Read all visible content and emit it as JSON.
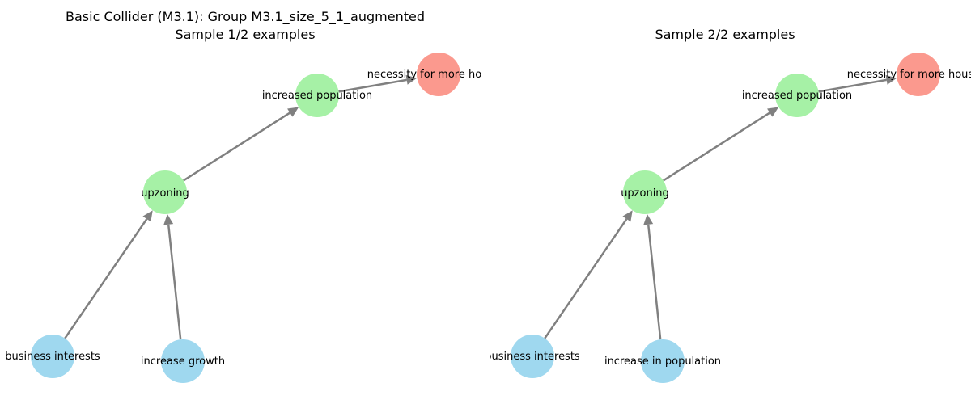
{
  "colors": {
    "blue": "#87CEEB",
    "green": "#90EE90",
    "red": "#FA8072",
    "edge": "#808080"
  },
  "panels": [
    {
      "title_line1": "Basic Collider (M3.1): Group M3.1_size_5_1_augmented",
      "title_line2": "Sample 1/2 examples",
      "nodes": {
        "n_business": "business interests",
        "n_growth": "increase growth",
        "n_upzoning": "upzoning",
        "n_population": "increased population",
        "n_housing": "necessity for more housing"
      },
      "edges": [
        [
          "n_business",
          "n_upzoning"
        ],
        [
          "n_growth",
          "n_upzoning"
        ],
        [
          "n_upzoning",
          "n_population"
        ],
        [
          "n_population",
          "n_housing"
        ]
      ]
    },
    {
      "title_line1": "",
      "title_line2": "Sample 2/2 examples",
      "nodes": {
        "n_business": "business interests",
        "n_growth": "increase in population",
        "n_upzoning": "upzoning",
        "n_population": "increased population",
        "n_housing": "necessity for more housing"
      },
      "edges": [
        [
          "n_business",
          "n_upzoning"
        ],
        [
          "n_growth",
          "n_upzoning"
        ],
        [
          "n_upzoning",
          "n_population"
        ],
        [
          "n_population",
          "n_housing"
        ]
      ]
    }
  ]
}
